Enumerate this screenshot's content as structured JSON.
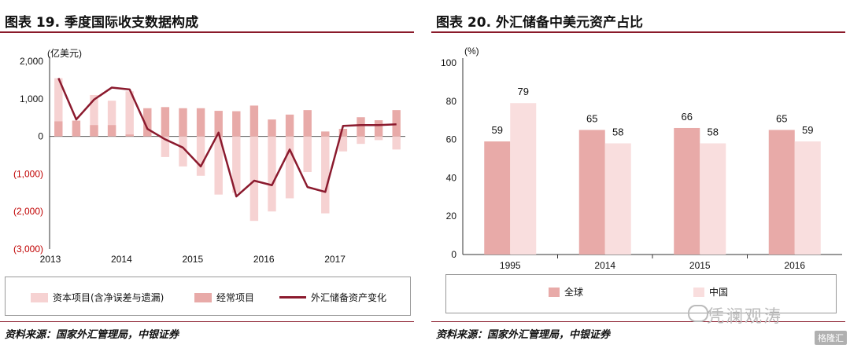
{
  "left": {
    "title": "图表 19. 季度国际收支数据构成",
    "source": "资料来源：国家外汇管理局，中银证券",
    "legend": {
      "capital": "资本项目(含净误差与遗漏)",
      "current": "经常项目",
      "reserve": "外汇储备资产变化"
    },
    "colors": {
      "capital": "#f6d2d2",
      "current": "#e8aaa8",
      "reserve": "#8b1a2e",
      "negative_tick": "#c00000"
    }
  },
  "right": {
    "title": "图表 20. 外汇储备中美元资产占比",
    "source": "资料来源：国家外汇管理局，中银证券",
    "legend": {
      "global": "全球",
      "china": "中国"
    },
    "colors": {
      "global": "#e8aaa8",
      "china": "#f9dede"
    },
    "watermark": "凭澜观涛",
    "badge": "格隆汇"
  },
  "chart_data": [
    {
      "type": "bar",
      "title": "图表 19. 季度国际收支数据构成",
      "ylabel": "(亿美元)",
      "ylim": [
        -3000,
        2000
      ],
      "yticks": [
        2000,
        1000,
        0,
        -1000,
        -2000,
        -3000
      ],
      "ytick_labels": [
        "2,000",
        "1,000",
        "0",
        "(1,000)",
        "(2,000)",
        "(3,000)"
      ],
      "x_tick_labels": [
        "2013",
        "2014",
        "2015",
        "2016",
        "2017"
      ],
      "quarters_per_tick": 4,
      "series": [
        {
          "name": "资本项目(含净误差与遗漏)",
          "type": "bar",
          "values": [
            1550,
            250,
            1100,
            950,
            1200,
            100,
            -550,
            -800,
            -1050,
            -1550,
            -1500,
            -2250,
            -2000,
            -1650,
            -950,
            -2050,
            -400,
            -200,
            -100,
            -350
          ]
        },
        {
          "name": "经常项目",
          "type": "bar",
          "values": [
            400,
            420,
            300,
            300,
            50,
            750,
            780,
            750,
            750,
            680,
            670,
            820,
            450,
            580,
            700,
            130,
            200,
            510,
            430,
            700
          ]
        },
        {
          "name": "外汇储备资产变化",
          "type": "line",
          "values": [
            1550,
            450,
            980,
            1300,
            1250,
            200,
            -80,
            -300,
            -800,
            100,
            -1600,
            -1180,
            -1300,
            -350,
            -1350,
            -1480,
            280,
            300,
            300,
            320
          ]
        }
      ]
    },
    {
      "type": "bar",
      "title": "图表 20. 外汇储备中美元资产占比",
      "ylabel": "(%)",
      "ylim": [
        0,
        100
      ],
      "yticks": [
        0,
        20,
        40,
        60,
        80,
        100
      ],
      "categories": [
        "1995",
        "2014",
        "2015",
        "2016"
      ],
      "series": [
        {
          "name": "全球",
          "values": [
            59,
            65,
            66,
            65
          ]
        },
        {
          "name": "中国",
          "values": [
            79,
            58,
            58,
            59
          ]
        }
      ]
    }
  ]
}
